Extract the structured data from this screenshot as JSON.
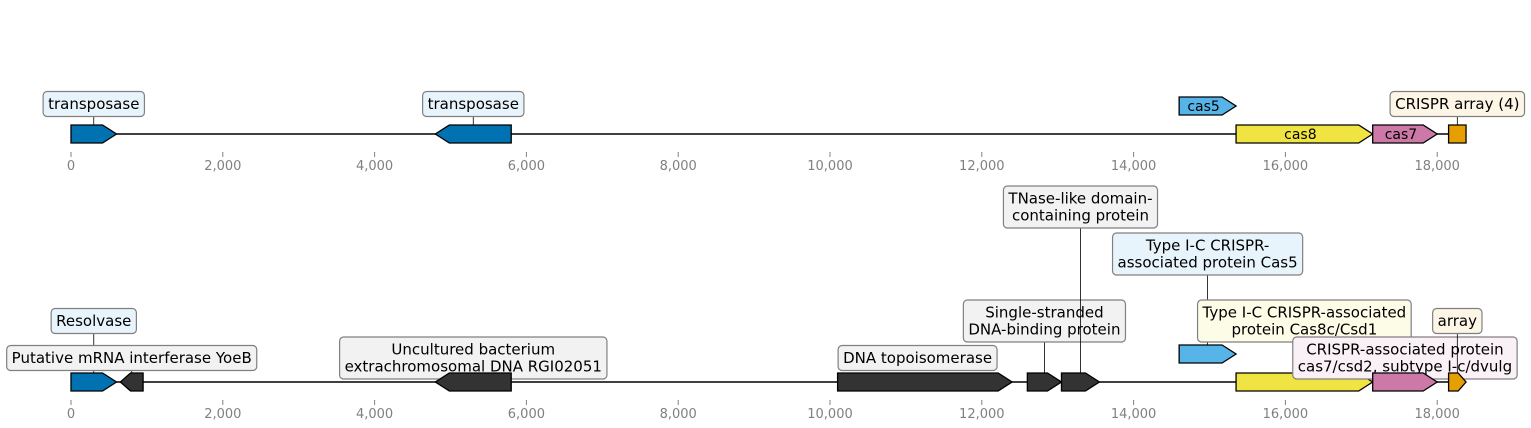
{
  "colors": {
    "blue": "#0072B2",
    "sky": "#56B4E9",
    "yellow": "#F0E442",
    "pink": "#CC79A7",
    "orange": "#E69F00",
    "dark": "#333333",
    "box_blue_fill": "#E8F4FC",
    "box_gray_fill": "#F2F2F2",
    "box_yellow_fill": "#FDFCE6",
    "box_orange_fill": "#FDF5E6",
    "box_pink_fill": "#FAF1F6"
  },
  "axis": {
    "xlim": [
      0,
      18400
    ],
    "ticks": [
      0,
      2000,
      4000,
      6000,
      8000,
      10000,
      12000,
      14000,
      16000,
      18000
    ],
    "tick_labels": [
      "0",
      "2,000",
      "4,000",
      "6,000",
      "8,000",
      "10,000",
      "12,000",
      "14,000",
      "16,000",
      "18,000"
    ]
  },
  "tracks": [
    {
      "name": "top",
      "features": [
        {
          "start": 0,
          "end": 600,
          "strand": 1,
          "color": "blue",
          "box": "box_blue_fill",
          "label": [
            "transposase"
          ],
          "label_mode": "above"
        },
        {
          "start": 4800,
          "end": 5800,
          "strand": -1,
          "color": "blue",
          "box": "box_blue_fill",
          "label": [
            "transposase"
          ],
          "label_mode": "above"
        },
        {
          "start": 14600,
          "end": 15350,
          "strand": 1,
          "color": "sky",
          "raised": true,
          "label": [
            "cas5"
          ],
          "label_mode": "inline"
        },
        {
          "start": 15350,
          "end": 17150,
          "strand": 1,
          "color": "yellow",
          "label": [
            "cas8"
          ],
          "label_mode": "inline"
        },
        {
          "start": 17150,
          "end": 18000,
          "strand": 1,
          "color": "pink",
          "label": [
            "cas7"
          ],
          "label_mode": "inline"
        },
        {
          "start": 18150,
          "end": 18380,
          "strand": 0,
          "color": "orange",
          "box": "box_orange_fill",
          "label": [
            "CRISPR array (4)"
          ],
          "label_mode": "above"
        }
      ]
    },
    {
      "name": "bottom",
      "features": [
        {
          "start": 0,
          "end": 600,
          "strand": 1,
          "color": "blue",
          "box": "box_blue_fill",
          "label": [
            "Resolvase"
          ],
          "label_mode": "above",
          "level": 1
        },
        {
          "start": 650,
          "end": 950,
          "strand": -1,
          "color": "dark",
          "box": "box_gray_fill",
          "label": [
            "Putative mRNA interferase YoeB"
          ],
          "label_mode": "above",
          "level": 0
        },
        {
          "start": 4800,
          "end": 5800,
          "strand": -1,
          "color": "dark",
          "box": "box_gray_fill",
          "label": [
            "Uncultured bacterium",
            "extrachromosomal DNA RGI02051"
          ],
          "label_mode": "above",
          "level": 0
        },
        {
          "start": 10100,
          "end": 12400,
          "strand": 1,
          "color": "dark",
          "box": "box_gray_fill",
          "label": [
            "DNA topoisomerase"
          ],
          "label_mode": "inline_box"
        },
        {
          "start": 12600,
          "end": 13050,
          "strand": 1,
          "color": "dark",
          "box": "box_gray_fill",
          "label": [
            "Single-stranded",
            "DNA-binding protein"
          ],
          "label_mode": "above",
          "level": 1
        },
        {
          "start": 13050,
          "end": 13550,
          "strand": 1,
          "color": "dark",
          "box": "box_gray_fill",
          "label": [
            "TNase-like domain-",
            "containing protein"
          ],
          "label_mode": "above",
          "level": 3
        },
        {
          "start": 14600,
          "end": 15350,
          "strand": 1,
          "color": "sky",
          "raised": true,
          "box": "box_blue_fill",
          "label": [
            "Type I-C CRISPR-",
            "associated protein Cas5"
          ],
          "label_mode": "above",
          "level": 2
        },
        {
          "start": 15350,
          "end": 17150,
          "strand": 1,
          "color": "yellow",
          "box": "box_yellow_fill",
          "label": [
            "Type I-C CRISPR-associated",
            "protein Cas8c/Csd1"
          ],
          "label_mode": "above",
          "level": 1
        },
        {
          "start": 17150,
          "end": 18000,
          "strand": 1,
          "color": "pink",
          "box": "box_pink_fill",
          "label": [
            "CRISPR-associated protein",
            "cas7/csd2, subtype I-c/dvulg"
          ],
          "label_mode": "above",
          "level": 0
        },
        {
          "start": 18150,
          "end": 18380,
          "strand": 1,
          "color": "orange",
          "box": "box_orange_fill",
          "label": [
            "array"
          ],
          "label_mode": "above",
          "level": 1
        }
      ]
    }
  ]
}
